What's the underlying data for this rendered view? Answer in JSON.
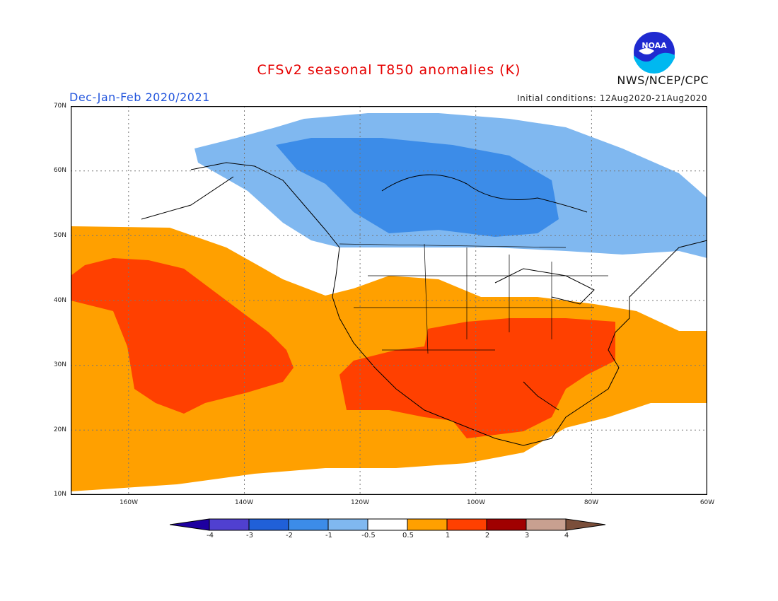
{
  "title": "CFSv2 seasonal T850 anomalies (K)",
  "season": "Dec-Jan-Feb 2020/2021",
  "initial_conditions": "Initial conditions: 12Aug2020-21Aug2020",
  "agency": "NWS/NCEP/CPC",
  "logo_text": "NOAA",
  "map": {
    "lon_range": [
      -170,
      -60
    ],
    "lat_range": [
      10,
      70
    ],
    "lat_labels": [
      "70N",
      "60N",
      "50N",
      "40N",
      "30N",
      "20N",
      "10N"
    ],
    "lon_labels": [
      "160W",
      "140W",
      "120W",
      "100W",
      "80W",
      "60W"
    ]
  },
  "colorbar": {
    "labels": [
      "-4",
      "-3",
      "-2",
      "-1",
      "-0.5",
      "0.5",
      "1",
      "2",
      "3",
      "4"
    ],
    "colors": [
      "#1e00a0",
      "#5040d0",
      "#2060d8",
      "#3c8ce8",
      "#80b8f0",
      "#ffffff",
      "#ffa000",
      "#ff4000",
      "#a00000",
      "#c8a090",
      "#7a4e3a"
    ]
  },
  "anomaly_regions": {
    "cold_band": "#80b8f0",
    "cold_core": "#3c8ce8",
    "warm_band": "#ffa000",
    "warm_core": "#ff4000"
  }
}
